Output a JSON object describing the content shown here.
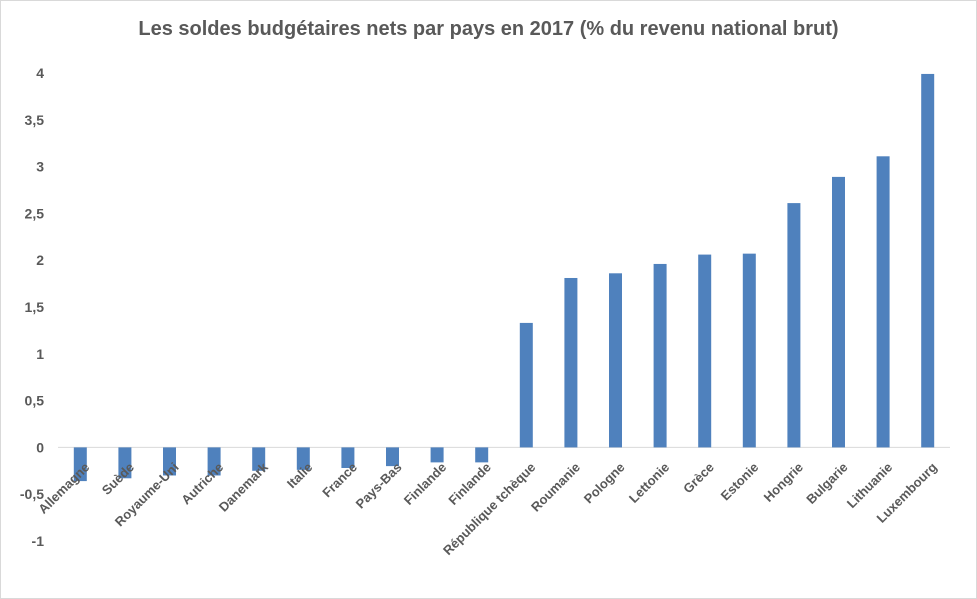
{
  "chart_data": {
    "type": "bar",
    "title": "Les soldes budgétaires nets par pays en 2017 (% du revenu national brut)",
    "categories": [
      "Allemagne",
      "Suède",
      "Royaume-Uni",
      "Autriche",
      "Danemark",
      "Italie",
      "France",
      "Pays-Bas",
      "Finlande",
      "Finlande",
      "République tchèque",
      "Roumanie",
      "Pologne",
      "Lettonie",
      "Grèce",
      "Estonie",
      "Hongrie",
      "Bulgarie",
      "Lithuanie",
      "Luxembourg"
    ],
    "values": [
      -0.36,
      -0.33,
      -0.3,
      -0.3,
      -0.25,
      -0.24,
      -0.22,
      -0.2,
      -0.16,
      -0.16,
      1.33,
      1.81,
      1.86,
      1.96,
      2.06,
      2.07,
      2.61,
      2.89,
      3.11,
      3.99
    ],
    "ylim": [
      -1,
      4
    ],
    "yticks": [
      "-1",
      "-0,5",
      "0",
      "0,5",
      "1",
      "1,5",
      "2",
      "2,5",
      "3",
      "3,5",
      "4"
    ],
    "yticks_values": [
      -1,
      -0.5,
      0,
      0.5,
      1,
      1.5,
      2,
      2.5,
      3,
      3.5,
      4
    ],
    "xlabel": "",
    "ylabel": "",
    "grid": false,
    "legend": "none",
    "bar_color": "#4f81bd"
  }
}
